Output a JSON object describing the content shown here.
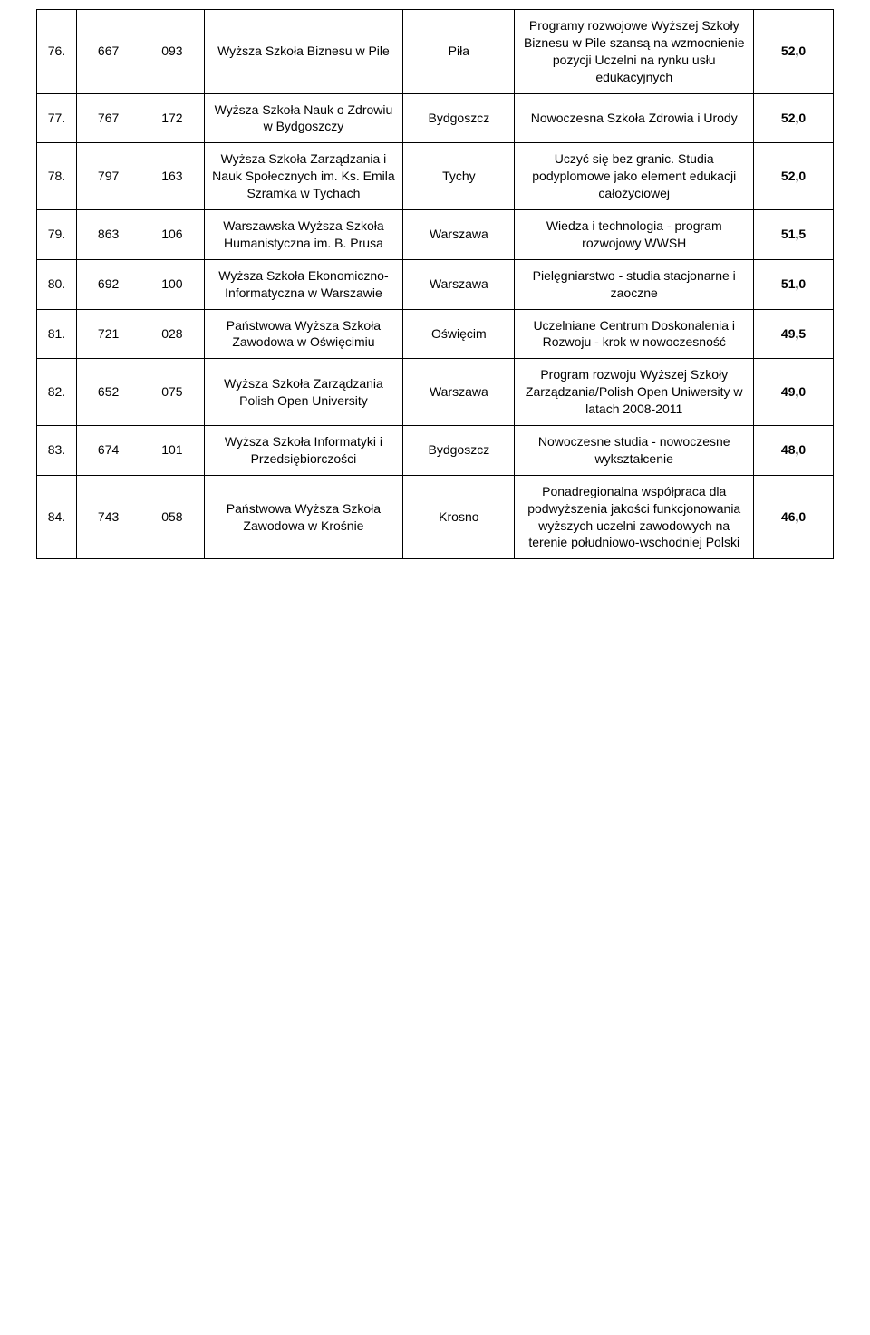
{
  "table": {
    "columns": [
      {
        "key": "idx",
        "width_pct": 5,
        "align": "center"
      },
      {
        "key": "a",
        "width_pct": 8,
        "align": "center"
      },
      {
        "key": "b",
        "width_pct": 8,
        "align": "center"
      },
      {
        "key": "inst",
        "width_pct": 25,
        "align": "center"
      },
      {
        "key": "city",
        "width_pct": 14,
        "align": "center"
      },
      {
        "key": "prog",
        "width_pct": 30,
        "align": "center"
      },
      {
        "key": "sc",
        "width_pct": 10,
        "align": "center",
        "bold": true
      }
    ],
    "border_color": "#000000",
    "background_color": "#ffffff",
    "text_color": "#000000",
    "font_size_pt": 11,
    "rows": [
      {
        "idx": "76.",
        "a": "667",
        "b": "093",
        "inst": "Wyższa Szkoła Biznesu w Pile",
        "city": "Piła",
        "prog": "Programy rozwojowe Wyższej Szkoły Biznesu w Pile szansą na wzmocnienie pozycji Uczelni na rynku usłu edukacyjnych",
        "sc": "52,0"
      },
      {
        "idx": "77.",
        "a": "767",
        "b": "172",
        "inst": "Wyższa Szkoła Nauk o Zdrowiu w Bydgoszczy",
        "city": "Bydgoszcz",
        "prog": "Nowoczesna Szkoła Zdrowia i Urody",
        "sc": "52,0"
      },
      {
        "idx": "78.",
        "a": "797",
        "b": "163",
        "inst": "Wyższa Szkoła Zarządzania i Nauk Społecznych im. Ks. Emila Szramka w Tychach",
        "city": "Tychy",
        "prog": "Uczyć się bez granic. Studia podyplomowe jako element edukacji całożyciowej",
        "sc": "52,0"
      },
      {
        "idx": "79.",
        "a": "863",
        "b": "106",
        "inst": "Warszawska Wyższa Szkoła Humanistyczna im. B. Prusa",
        "city": "Warszawa",
        "prog": "Wiedza i technologia - program rozwojowy WWSH",
        "sc": "51,5"
      },
      {
        "idx": "80.",
        "a": "692",
        "b": "100",
        "inst": "Wyższa Szkoła Ekonomiczno-Informatyczna w Warszawie",
        "city": "Warszawa",
        "prog": "Pielęgniarstwo - studia stacjonarne i zaoczne",
        "sc": "51,0"
      },
      {
        "idx": "81.",
        "a": "721",
        "b": "028",
        "inst": "Państwowa Wyższa Szkoła Zawodowa w Oświęcimiu",
        "city": "Oświęcim",
        "prog": "Uczelniane Centrum Doskonalenia i Rozwoju - krok w nowoczesność",
        "sc": "49,5"
      },
      {
        "idx": "82.",
        "a": "652",
        "b": "075",
        "inst": "Wyższa Szkoła Zarządzania Polish Open University",
        "city": "Warszawa",
        "prog": "Program rozwoju Wyższej Szkoły Zarządzania/Polish Open Uniwersity w latach 2008-2011",
        "sc": "49,0"
      },
      {
        "idx": "83.",
        "a": "674",
        "b": "101",
        "inst": "Wyższa Szkoła Informatyki i Przedsiębiorczości",
        "city": "Bydgoszcz",
        "prog": "Nowoczesne studia - nowoczesne wykształcenie",
        "sc": "48,0"
      },
      {
        "idx": "84.",
        "a": "743",
        "b": "058",
        "inst": "Państwowa Wyższa Szkoła Zawodowa w Krośnie",
        "city": "Krosno",
        "prog": "Ponadregionalna współpraca dla podwyższenia jakości funkcjonowania wyższych uczelni zawodowych na terenie południowo-wschodniej Polski",
        "sc": "46,0"
      }
    ]
  }
}
